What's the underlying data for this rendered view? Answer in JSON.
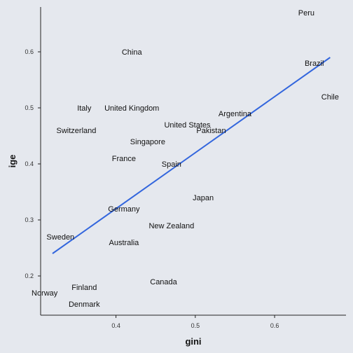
{
  "chart_data": {
    "type": "scatter",
    "xlabel": "gini",
    "ylabel": "ige",
    "xlim": [
      0.305,
      0.69
    ],
    "ylim": [
      0.13,
      0.68
    ],
    "xticks": [
      "0.4",
      "0.5",
      "0.6"
    ],
    "xtick_values": [
      0.4,
      0.5,
      0.6
    ],
    "yticks": [
      "0.2",
      "0.3",
      "0.4",
      "0.5",
      "0.6"
    ],
    "ytick_values": [
      0.2,
      0.3,
      0.4,
      0.5,
      0.6
    ],
    "grid": false,
    "marker": "text labels",
    "line_color": "#3366dd",
    "points": [
      {
        "label": "Peru",
        "x": 0.64,
        "y": 0.67
      },
      {
        "label": "China",
        "x": 0.42,
        "y": 0.6
      },
      {
        "label": "Brazil",
        "x": 0.65,
        "y": 0.58
      },
      {
        "label": "Chile",
        "x": 0.67,
        "y": 0.52
      },
      {
        "label": "Italy",
        "x": 0.36,
        "y": 0.5
      },
      {
        "label": "United Kingdom",
        "x": 0.42,
        "y": 0.5
      },
      {
        "label": "Argentina",
        "x": 0.55,
        "y": 0.49
      },
      {
        "label": "United States",
        "x": 0.49,
        "y": 0.47
      },
      {
        "label": "Switzerland",
        "x": 0.35,
        "y": 0.46
      },
      {
        "label": "Pakistan",
        "x": 0.52,
        "y": 0.46
      },
      {
        "label": "Singapore",
        "x": 0.44,
        "y": 0.44
      },
      {
        "label": "France",
        "x": 0.41,
        "y": 0.41
      },
      {
        "label": "Spain",
        "x": 0.47,
        "y": 0.4
      },
      {
        "label": "Japan",
        "x": 0.51,
        "y": 0.34
      },
      {
        "label": "Germany",
        "x": 0.41,
        "y": 0.32
      },
      {
        "label": "New Zealand",
        "x": 0.47,
        "y": 0.29
      },
      {
        "label": "Sweden",
        "x": 0.33,
        "y": 0.27
      },
      {
        "label": "Australia",
        "x": 0.41,
        "y": 0.26
      },
      {
        "label": "Canada",
        "x": 0.46,
        "y": 0.19
      },
      {
        "label": "Finland",
        "x": 0.36,
        "y": 0.18
      },
      {
        "label": "Norway",
        "x": 0.31,
        "y": 0.17
      },
      {
        "label": "Denmark",
        "x": 0.36,
        "y": 0.15
      }
    ],
    "fit_line": {
      "x": [
        0.32,
        0.67
      ],
      "y": [
        0.24,
        0.59
      ]
    }
  }
}
